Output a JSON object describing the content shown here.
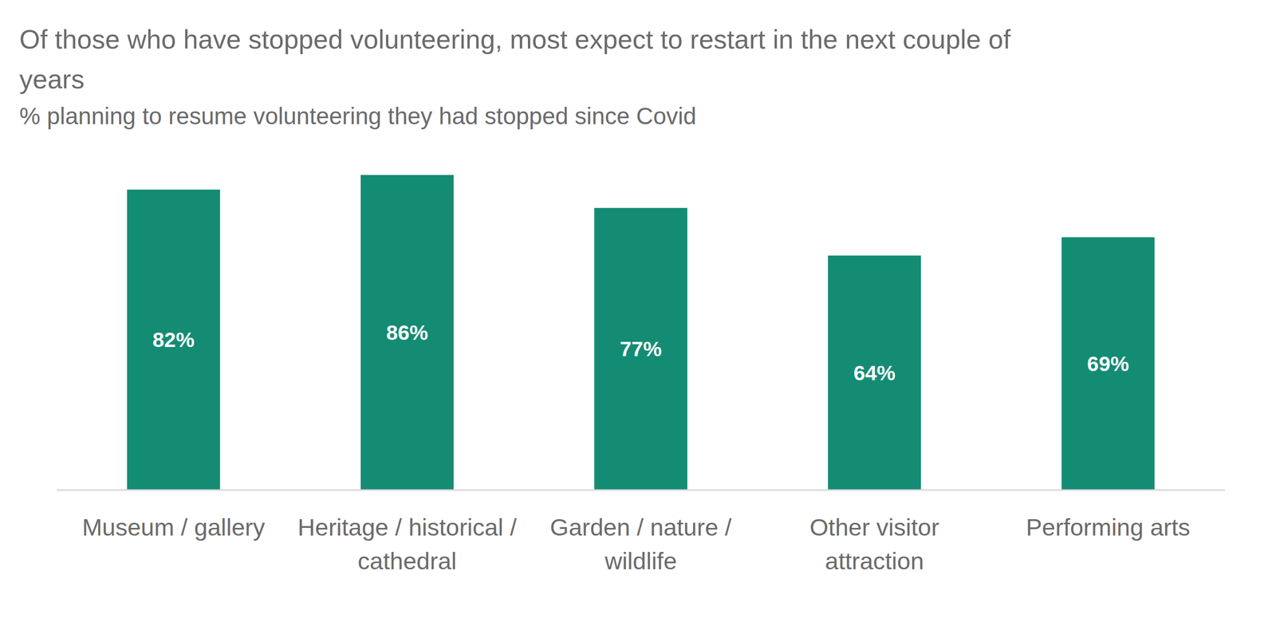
{
  "chart_data": {
    "type": "bar",
    "title": "Of those who have stopped volunteering, most expect to restart in the next couple of years",
    "subtitle": "%  planning to resume volunteering they had stopped since Covid",
    "categories": [
      "Museum / gallery",
      "Heritage / historical / cathedral",
      "Garden / nature / wildlife",
      "Other visitor attraction",
      "Performing arts"
    ],
    "values": [
      82,
      86,
      77,
      64,
      69
    ],
    "value_labels": [
      "82%",
      "86%",
      "77%",
      "64%",
      "69%"
    ],
    "color": "#148c74",
    "ylim": [
      0,
      100
    ],
    "grid": false,
    "data_labels": true,
    "tick_labels": "x"
  }
}
